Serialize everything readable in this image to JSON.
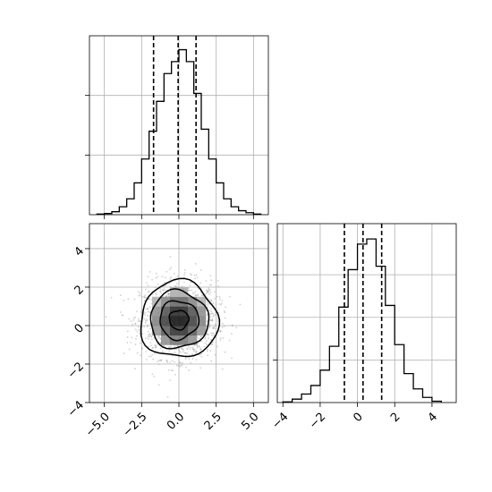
{
  "chart_data": [
    {
      "type": "histogram",
      "panel": "marginal-x",
      "bin_edges": [
        -5.5,
        -5.0,
        -4.5,
        -4.0,
        -3.5,
        -3.0,
        -2.5,
        -2.0,
        -1.5,
        -1.0,
        -0.5,
        0.0,
        0.5,
        1.0,
        1.5,
        2.0,
        2.5,
        3.0,
        3.5,
        4.0,
        4.5,
        5.0,
        5.5
      ],
      "counts": [
        0.3,
        0.6,
        1.5,
        4,
        8,
        16,
        28,
        42,
        57,
        71,
        77,
        83,
        77,
        61,
        43,
        28,
        16,
        8,
        4,
        2,
        1,
        0.3
      ],
      "quantile_lines": [
        -1.7,
        -0.05,
        1.15
      ],
      "xlim": [
        -6,
        6
      ],
      "ylim": [
        0,
        90
      ],
      "x_tick_values": [
        -5.0,
        -2.5,
        0.0,
        2.5,
        5.0
      ],
      "y_tick_values": [
        30,
        60
      ],
      "tick_labels_shown": false,
      "grid": true
    },
    {
      "type": "scatter_density",
      "panel": "joint",
      "xlim": [
        -6,
        6
      ],
      "ylim": [
        -4,
        5.3
      ],
      "x_tick_labels": [
        "−5.0",
        "−2.5",
        "0.0",
        "2.5",
        "5.0"
      ],
      "x_tick_values": [
        -5.0,
        -2.5,
        0.0,
        2.5,
        5.0
      ],
      "y_tick_labels": [
        "−4",
        "−2",
        "0",
        "2",
        "4"
      ],
      "y_tick_values": [
        -4,
        -2,
        0,
        2,
        4
      ],
      "center": [
        0.0,
        0.3
      ],
      "std": [
        1.3,
        1.0
      ],
      "contour_levels_sigma": [
        0.5,
        1.0,
        1.5,
        2.0
      ],
      "grid": true
    },
    {
      "type": "histogram",
      "panel": "marginal-y",
      "bin_edges": [
        -4.0,
        -3.5,
        -3.0,
        -2.5,
        -2.0,
        -1.5,
        -1.0,
        -0.5,
        0.0,
        0.5,
        1.0,
        1.5,
        2.0,
        2.5,
        3.0,
        3.5,
        4.0,
        4.5
      ],
      "counts": [
        0.4,
        2,
        5,
        10,
        19,
        33,
        56,
        78,
        93,
        96,
        80,
        57,
        34,
        17,
        8,
        3,
        0.8
      ],
      "quantile_lines": [
        -0.7,
        0.3,
        1.3
      ],
      "xlim": [
        -4.3,
        5.3
      ],
      "ylim": [
        0,
        105
      ],
      "x_tick_labels": [
        "−4",
        "−2",
        "0",
        "2",
        "4"
      ],
      "x_tick_values": [
        -4,
        -2,
        0,
        2,
        4
      ],
      "y_tick_values": [
        25,
        50,
        75
      ],
      "grid": true
    }
  ]
}
